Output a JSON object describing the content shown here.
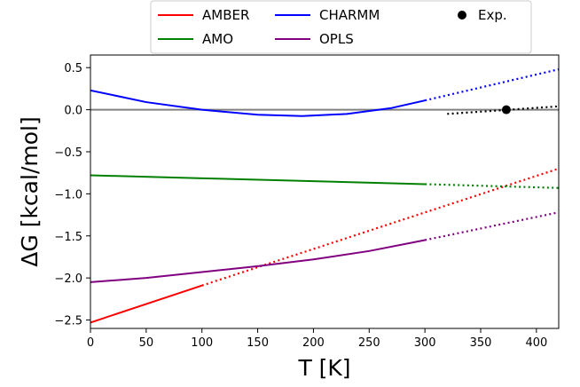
{
  "chart_data": {
    "type": "line",
    "xlabel": "T [K]",
    "ylabel": "ΔG [kcal/mol]",
    "xlim": [
      0,
      420
    ],
    "ylim": [
      -2.6,
      0.65
    ],
    "xticks": [
      0,
      50,
      100,
      150,
      200,
      250,
      300,
      350,
      400
    ],
    "yticks": [
      -2.5,
      -2.0,
      -1.5,
      -1.0,
      -0.5,
      0.0,
      0.5
    ],
    "xtick_labels": [
      "0",
      "50",
      "100",
      "150",
      "200",
      "250",
      "300",
      "350",
      "400"
    ],
    "ytick_labels": [
      "−2.5",
      "−2.0",
      "−1.5",
      "−1.0",
      "−0.5",
      "0.0",
      "0.5"
    ],
    "legend_position": "top",
    "reference_line": {
      "y": 0.0,
      "color": "#808080"
    },
    "series": [
      {
        "name": "AMBER",
        "color": "#ff0000",
        "solid": {
          "x": [
            0,
            100
          ],
          "y": [
            -2.53,
            -2.09
          ]
        },
        "dotted": {
          "x": [
            100,
            420
          ],
          "y": [
            -2.09,
            -0.7
          ]
        }
      },
      {
        "name": "AMO",
        "color": "#008000",
        "solid": {
          "x": [
            0,
            100,
            200,
            300
          ],
          "y": [
            -0.78,
            -0.815,
            -0.85,
            -0.885
          ]
        },
        "dotted": {
          "x": [
            300,
            420
          ],
          "y": [
            -0.885,
            -0.93
          ]
        }
      },
      {
        "name": "CHARMM",
        "color": "#0000ff",
        "solid": {
          "x": [
            0,
            50,
            100,
            150,
            190,
            230,
            270,
            300
          ],
          "y": [
            0.23,
            0.09,
            0.0,
            -0.06,
            -0.075,
            -0.05,
            0.02,
            0.11
          ]
        },
        "dotted": {
          "x": [
            300,
            420
          ],
          "y": [
            0.11,
            0.48
          ]
        }
      },
      {
        "name": "OPLS",
        "color": "#800080",
        "solid": {
          "x": [
            0,
            50,
            100,
            150,
            200,
            250,
            300
          ],
          "y": [
            -2.05,
            -2.0,
            -1.93,
            -1.86,
            -1.78,
            -1.68,
            -1.55
          ]
        },
        "dotted": {
          "x": [
            300,
            420
          ],
          "y": [
            -1.55,
            -1.22
          ]
        }
      },
      {
        "name": "Exp.",
        "color": "#000000",
        "marker": "circle",
        "points": {
          "x": [
            373
          ],
          "y": [
            0.0
          ]
        },
        "dotted": {
          "x": [
            320,
            420
          ],
          "y": [
            -0.05,
            0.04
          ]
        }
      }
    ]
  },
  "legend": {
    "entries": [
      {
        "label": "AMBER",
        "color": "#ff0000",
        "kind": "line"
      },
      {
        "label": "CHARMM",
        "color": "#0000ff",
        "kind": "line"
      },
      {
        "label": "Exp.",
        "color": "#000000",
        "kind": "marker"
      },
      {
        "label": "AMO",
        "color": "#008000",
        "kind": "line"
      },
      {
        "label": "OPLS",
        "color": "#800080",
        "kind": "line"
      }
    ]
  }
}
